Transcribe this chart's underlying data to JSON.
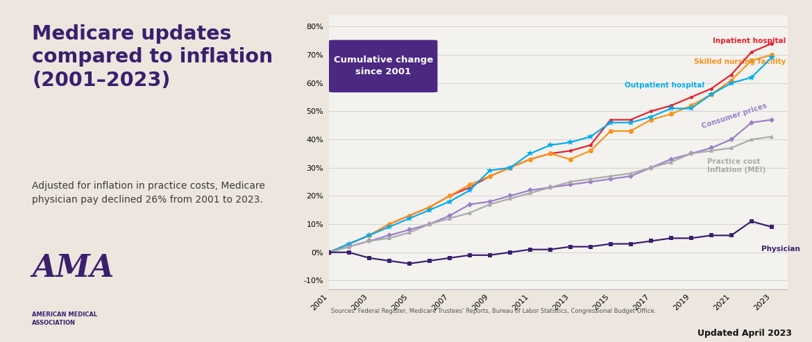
{
  "years": [
    2001,
    2002,
    2003,
    2004,
    2005,
    2006,
    2007,
    2008,
    2009,
    2010,
    2011,
    2012,
    2013,
    2014,
    2015,
    2016,
    2017,
    2018,
    2019,
    2020,
    2021,
    2022,
    2023
  ],
  "inpatient_hospital": [
    0,
    3,
    6,
    10,
    13,
    16,
    20,
    23,
    27,
    30,
    33,
    35,
    36,
    38,
    47,
    47,
    50,
    52,
    55,
    58,
    63,
    71,
    74
  ],
  "skilled_nursing": [
    0,
    3,
    6,
    10,
    13,
    16,
    20,
    24,
    27,
    30,
    33,
    35,
    33,
    36,
    43,
    43,
    47,
    49,
    52,
    56,
    61,
    68,
    70
  ],
  "outpatient_hospital": [
    0,
    3,
    6,
    9,
    12,
    15,
    18,
    22,
    29,
    30,
    35,
    38,
    39,
    41,
    46,
    46,
    48,
    51,
    51,
    56,
    60,
    62,
    69
  ],
  "consumer_prices": [
    0,
    2,
    4,
    6,
    8,
    10,
    13,
    17,
    18,
    20,
    22,
    23,
    24,
    25,
    26,
    27,
    30,
    33,
    35,
    37,
    40,
    46,
    47
  ],
  "practice_cost_mei": [
    0,
    2,
    4,
    5,
    7,
    10,
    12,
    14,
    17,
    19,
    21,
    23,
    25,
    26,
    27,
    28,
    30,
    32,
    35,
    36,
    37,
    40,
    41
  ],
  "physician": [
    0,
    0,
    -2,
    -3,
    -4,
    -3,
    -2,
    -1,
    -1,
    0,
    1,
    1,
    2,
    2,
    3,
    3,
    4,
    5,
    5,
    6,
    6,
    11,
    9
  ],
  "bg_left_color": "#ece6df",
  "chart_bg_color": "#f4f2ef",
  "inpatient_color": "#e8202a",
  "skilled_color": "#f7941d",
  "outpatient_color": "#00aeef",
  "consumer_color": "#9b7fc7",
  "mei_color": "#aaaaaa",
  "physician_color": "#3b1f6e",
  "title_line1": "Medicare updates",
  "title_line2": "compared to inflation",
  "title_line3": "(2001–2023)",
  "title_color": "#3b1f6e",
  "subtitle": "Adjusted for inflation in practice costs, Medicare\nphysician pay declined 26% from 2001 to 2023.",
  "box_label": "Cumulative change\nsince 2001",
  "box_bg_color": "#4b2882",
  "box_text_color": "#ffffff",
  "label_inpatient": "Inpatient hospital",
  "label_skilled": "Skilled nursing facility",
  "label_outpatient": "Outpatient hospital",
  "label_consumer": "Consumer prices",
  "label_mei": "Practice cost\nInflation (MEI)",
  "label_physician": "Physician",
  "source_text": "Sources: Federal Register, Medicare Trustees’ Reports, Bureau of Labor Statistics, Congressional Budget Office.",
  "updated_text": "Updated April 2023",
  "ylim_min": -13,
  "ylim_max": 84,
  "yticks": [
    -10,
    0,
    10,
    20,
    30,
    40,
    50,
    60,
    70,
    80
  ],
  "xticks": [
    2001,
    2003,
    2005,
    2007,
    2009,
    2011,
    2013,
    2015,
    2017,
    2019,
    2021,
    2023
  ]
}
